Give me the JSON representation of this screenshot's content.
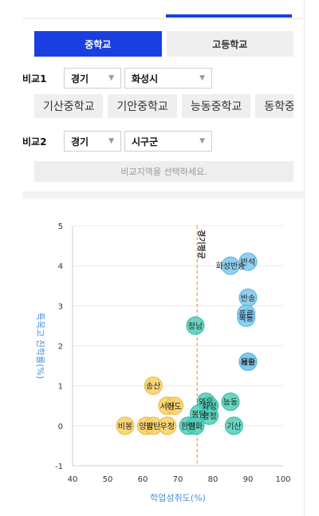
{
  "school_tabs": {
    "middle": "중학교",
    "high": "고등학교"
  },
  "compare1": {
    "label": "비교1",
    "region": "경기",
    "city": "화성시",
    "schools": [
      "기산중학교",
      "기안중학교",
      "능동중학교",
      "동학중"
    ]
  },
  "compare2": {
    "label": "비교2",
    "region": "경기",
    "city": "시구군"
  },
  "notice": "비교지역을 선택하세요.",
  "colors": {
    "accent": "#1a3fe0",
    "blue_bubble": "#7ec8ea",
    "teal_bubble": "#4fcfb8",
    "yellow_bubble": "#f8d064",
    "ref_line": "#f0a050"
  },
  "chart_data": {
    "type": "scatter",
    "xlabel": "학업성취도(%)",
    "ylabel": "특목고 진학률(%)",
    "xlim": [
      40,
      100
    ],
    "ylim": [
      -1,
      5
    ],
    "xticks": [
      "40",
      "50",
      "60",
      "70",
      "80",
      "90",
      "100"
    ],
    "yticks": [
      "5",
      "4",
      "3",
      "2",
      "1",
      "0",
      "-1"
    ],
    "reference_line": {
      "x": 75.5,
      "label": "경기평균"
    },
    "points": [
      {
        "label": "화성반송",
        "x": 85,
        "y": 4.0,
        "group": "blue"
      },
      {
        "label": "반석",
        "x": 90,
        "y": 4.1,
        "group": "blue"
      },
      {
        "label": "반송",
        "x": 90,
        "y": 3.2,
        "group": "blue"
      },
      {
        "label": "푸른",
        "x": 89.5,
        "y": 2.8,
        "group": "blue"
      },
      {
        "label": "목동",
        "x": 89.5,
        "y": 2.7,
        "group": "blue"
      },
      {
        "label": "동탄",
        "x": 90,
        "y": 1.6,
        "group": "blue"
      },
      {
        "label": "새솔",
        "x": 90,
        "y": 1.6,
        "group": "blue"
      },
      {
        "label": "정남",
        "x": 75,
        "y": 2.5,
        "group": "teal"
      },
      {
        "label": "능동",
        "x": 85,
        "y": 0.6,
        "group": "teal"
      },
      {
        "label": "기산",
        "x": 86,
        "y": 0.0,
        "group": "teal"
      },
      {
        "label": "와우",
        "x": 78,
        "y": 0.6,
        "group": "teal"
      },
      {
        "label": "화성",
        "x": 79,
        "y": 0.5,
        "group": "teal"
      },
      {
        "label": "봉담",
        "x": 76,
        "y": 0.3,
        "group": "teal"
      },
      {
        "label": "명정",
        "x": 79,
        "y": 0.25,
        "group": "teal"
      },
      {
        "label": "한림",
        "x": 73,
        "y": 0.0,
        "group": "teal"
      },
      {
        "label": "안화",
        "x": 75,
        "y": 0.0,
        "group": "teal"
      },
      {
        "label": "송산",
        "x": 63,
        "y": 1.0,
        "group": "yellow"
      },
      {
        "label": "서신",
        "x": 67,
        "y": 0.5,
        "group": "yellow"
      },
      {
        "label": "마도",
        "x": 69,
        "y": 0.5,
        "group": "yellow"
      },
      {
        "label": "비봉",
        "x": 55,
        "y": 0.0,
        "group": "yellow"
      },
      {
        "label": "양감",
        "x": 61,
        "y": 0.0,
        "group": "yellow"
      },
      {
        "label": "팔탄",
        "x": 63,
        "y": 0.0,
        "group": "yellow"
      },
      {
        "label": "우정",
        "x": 67,
        "y": 0.0,
        "group": "yellow"
      }
    ]
  }
}
